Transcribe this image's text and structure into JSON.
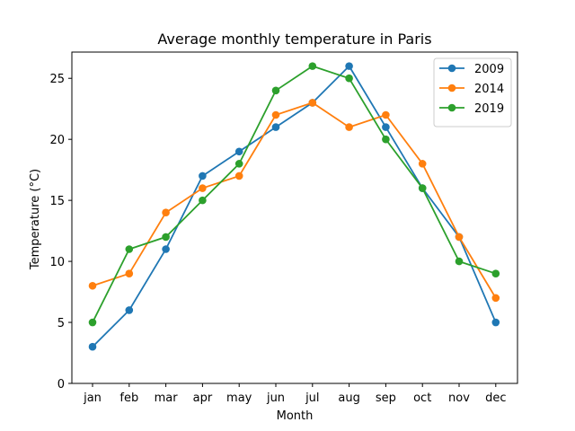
{
  "chart_data": {
    "type": "line",
    "title": "Average monthly temperature in Paris",
    "xlabel": "Month",
    "ylabel": "Temperature (°C)",
    "categories": [
      "jan",
      "feb",
      "mar",
      "apr",
      "may",
      "jun",
      "jul",
      "aug",
      "sep",
      "oct",
      "nov",
      "dec"
    ],
    "ylim": [
      0,
      27.15
    ],
    "yticks": [
      0,
      5,
      10,
      15,
      20,
      25
    ],
    "grid": false,
    "legend_position": "top-right",
    "series": [
      {
        "name": "2009",
        "color": "#1f77b4",
        "values": [
          3,
          6,
          11,
          17,
          19,
          21,
          23,
          26,
          21,
          16,
          12,
          5
        ]
      },
      {
        "name": "2014",
        "color": "#ff7f0e",
        "values": [
          8,
          9,
          14,
          16,
          17,
          22,
          23,
          21,
          22,
          18,
          12,
          7
        ]
      },
      {
        "name": "2019",
        "color": "#2ca02c",
        "values": [
          5,
          11,
          12,
          15,
          18,
          24,
          26,
          25,
          20,
          16,
          10,
          9
        ]
      }
    ]
  }
}
